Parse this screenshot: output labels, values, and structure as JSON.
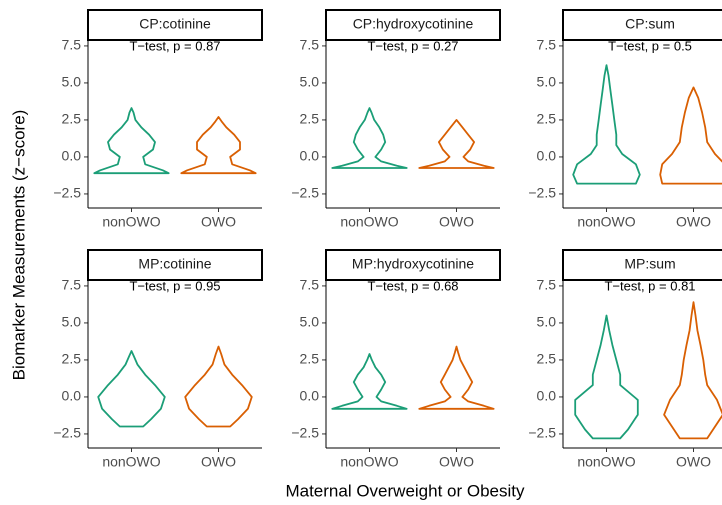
{
  "figure": {
    "xlabel": "Maternal Overweight or Obesity",
    "ylabel": "Biomarker Measurements (z−score)"
  },
  "chart_data": [
    {
      "type": "violin",
      "title": "CP:cotinine",
      "annotation": "T−test, p = 0.87",
      "categories": [
        "nonOWO",
        "OWO"
      ],
      "violins": [
        {
          "color": "#1b9e77",
          "y": [
            -1.1,
            -0.9,
            -0.5,
            0,
            0.5,
            1,
            1.5,
            2,
            2.5,
            3,
            3.3
          ],
          "width": [
            0.95,
            0.8,
            0.35,
            0.3,
            0.55,
            0.6,
            0.45,
            0.25,
            0.1,
            0.05,
            0
          ]
        },
        {
          "color": "#d95f02",
          "y": [
            -1.1,
            -0.9,
            -0.5,
            0,
            0.5,
            1,
            1.5,
            2,
            2.4,
            2.7
          ],
          "width": [
            0.95,
            0.8,
            0.35,
            0.3,
            0.55,
            0.55,
            0.4,
            0.2,
            0.08,
            0
          ]
        }
      ],
      "ylim": [
        -3.45,
        7.9
      ],
      "yticks": [
        {
          "value": -2.5,
          "label": "−2.5"
        },
        {
          "value": 0,
          "label": "0.0"
        },
        2.5,
        {
          "value": 5,
          "label": "5.0"
        },
        7.5
      ]
    },
    {
      "type": "violin",
      "title": "CP:hydroxycotinine",
      "annotation": "T−test, p = 0.27",
      "categories": [
        "nonOWO",
        "OWO"
      ],
      "violins": [
        {
          "color": "#1b9e77",
          "y": [
            -0.75,
            -0.6,
            -0.3,
            0,
            0.5,
            1,
            1.5,
            2,
            2.5,
            3,
            3.3
          ],
          "width": [
            0.95,
            0.7,
            0.3,
            0.15,
            0.3,
            0.4,
            0.35,
            0.25,
            0.12,
            0.05,
            0
          ]
        },
        {
          "color": "#d95f02",
          "y": [
            -0.75,
            -0.6,
            -0.3,
            0,
            0.5,
            1,
            1.5,
            2,
            2.5
          ],
          "width": [
            0.95,
            0.7,
            0.3,
            0.18,
            0.35,
            0.45,
            0.3,
            0.15,
            0
          ]
        }
      ],
      "ylim": [
        -3.45,
        7.9
      ],
      "yticks": [
        {
          "value": -2.5,
          "label": "−2.5"
        },
        {
          "value": 0,
          "label": "0.0"
        },
        2.5,
        {
          "value": 5,
          "label": "5.0"
        },
        7.5
      ]
    },
    {
      "type": "violin",
      "title": "CP:sum",
      "annotation": "T−test, p = 0.5",
      "categories": [
        "nonOWO",
        "OWO"
      ],
      "violins": [
        {
          "color": "#1b9e77",
          "y": [
            -1.8,
            -1.2,
            -0.5,
            0.2,
            0.8,
            1.5,
            2.5,
            3.5,
            4.5,
            5.5,
            6.2
          ],
          "width": [
            0.75,
            0.85,
            0.75,
            0.4,
            0.25,
            0.25,
            0.2,
            0.15,
            0.1,
            0.05,
            0
          ]
        },
        {
          "color": "#d95f02",
          "y": [
            -1.8,
            -1.2,
            -0.5,
            0.2,
            1,
            2,
            3,
            4,
            4.7
          ],
          "width": [
            0.8,
            0.85,
            0.8,
            0.55,
            0.35,
            0.3,
            0.22,
            0.12,
            0
          ]
        }
      ],
      "ylim": [
        -3.45,
        7.9
      ],
      "yticks": [
        {
          "value": -2.5,
          "label": "−2.5"
        },
        {
          "value": 0,
          "label": "0.0"
        },
        2.5,
        {
          "value": 5,
          "label": "5.0"
        },
        7.5
      ]
    },
    {
      "type": "violin",
      "title": "MP:cotinine",
      "annotation": "T−test, p = 0.95",
      "categories": [
        "nonOWO",
        "OWO"
      ],
      "violins": [
        {
          "color": "#1b9e77",
          "y": [
            -2,
            -1.5,
            -0.8,
            0,
            0.8,
            1.5,
            2.2,
            2.7,
            3.1
          ],
          "width": [
            0.3,
            0.5,
            0.75,
            0.85,
            0.6,
            0.35,
            0.15,
            0.07,
            0
          ]
        },
        {
          "color": "#d95f02",
          "y": [
            -2,
            -1.5,
            -0.8,
            0,
            0.8,
            1.5,
            2.2,
            2.9,
            3.4
          ],
          "width": [
            0.3,
            0.5,
            0.75,
            0.85,
            0.6,
            0.35,
            0.15,
            0.07,
            0
          ]
        }
      ],
      "ylim": [
        -3.45,
        7.9
      ],
      "yticks": [
        {
          "value": -2.5,
          "label": "−2.5"
        },
        {
          "value": 0,
          "label": "0.0"
        },
        2.5,
        {
          "value": 5,
          "label": "5.0"
        },
        7.5
      ]
    },
    {
      "type": "violin",
      "title": "MP:hydroxycotinine",
      "annotation": "T−test, p = 0.68",
      "categories": [
        "nonOWO",
        "OWO"
      ],
      "violins": [
        {
          "color": "#1b9e77",
          "y": [
            -0.8,
            -0.6,
            -0.3,
            0,
            0.5,
            1,
            1.5,
            2,
            2.5,
            2.9
          ],
          "width": [
            0.95,
            0.7,
            0.3,
            0.18,
            0.3,
            0.4,
            0.3,
            0.15,
            0.06,
            0
          ]
        },
        {
          "color": "#d95f02",
          "y": [
            -0.8,
            -0.6,
            -0.3,
            0,
            0.5,
            1,
            1.5,
            2,
            2.5,
            3,
            3.4
          ],
          "width": [
            0.95,
            0.7,
            0.3,
            0.15,
            0.3,
            0.4,
            0.3,
            0.2,
            0.1,
            0.04,
            0
          ]
        }
      ],
      "ylim": [
        -3.45,
        7.9
      ],
      "yticks": [
        {
          "value": -2.5,
          "label": "−2.5"
        },
        {
          "value": 0,
          "label": "0.0"
        },
        2.5,
        {
          "value": 5,
          "label": "5.0"
        },
        7.5
      ]
    },
    {
      "type": "violin",
      "title": "MP:sum",
      "annotation": "T−test, p = 0.81",
      "categories": [
        "nonOWO",
        "OWO"
      ],
      "violins": [
        {
          "color": "#1b9e77",
          "y": [
            -2.8,
            -2.2,
            -1.2,
            -0.2,
            0.8,
            1.5,
            2.5,
            3.5,
            4.5,
            5.5
          ],
          "width": [
            0.35,
            0.55,
            0.8,
            0.8,
            0.35,
            0.35,
            0.25,
            0.15,
            0.07,
            0
          ]
        },
        {
          "color": "#d95f02",
          "y": [
            -2.8,
            -2.2,
            -1.2,
            -0.2,
            0.8,
            1.5,
            2.5,
            3.5,
            4.5,
            5.5,
            6.4
          ],
          "width": [
            0.35,
            0.5,
            0.75,
            0.6,
            0.35,
            0.3,
            0.25,
            0.18,
            0.1,
            0.05,
            0
          ]
        }
      ],
      "ylim": [
        -3.45,
        7.9
      ],
      "yticks": [
        {
          "value": -2.5,
          "label": "−2.5"
        },
        {
          "value": 0,
          "label": "0.0"
        },
        2.5,
        {
          "value": 5,
          "label": "5.0"
        },
        7.5
      ]
    }
  ]
}
